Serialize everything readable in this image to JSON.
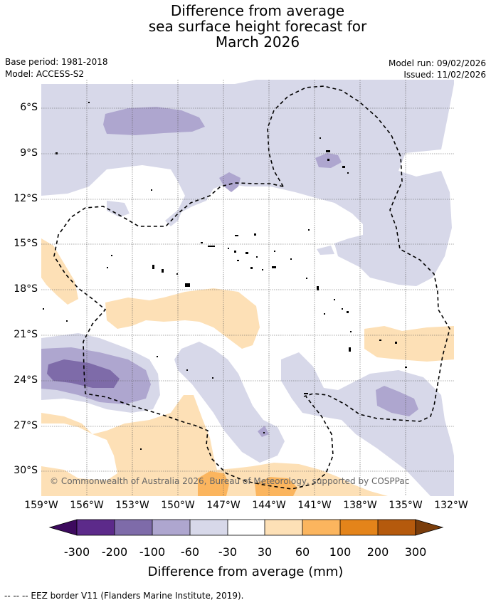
{
  "title": {
    "line1": "Difference from average",
    "line2": "sea surface height forecast for",
    "line3": "March 2026"
  },
  "meta": {
    "base_period": "Base period: 1981-2018",
    "model": "Model: ACCESS-S2",
    "model_run": "Model run: 09/02/2026",
    "issued": "Issued: 11/02/2026"
  },
  "axes": {
    "lat_labels": [
      "6°S",
      "9°S",
      "12°S",
      "15°S",
      "18°S",
      "21°S",
      "24°S",
      "27°S",
      "30°S"
    ],
    "lon_labels": [
      "159°W",
      "156°W",
      "153°W",
      "150°W",
      "147°W",
      "144°W",
      "141°W",
      "138°W",
      "135°W",
      "132°W"
    ]
  },
  "copyright": "© Commonwealth of Australia 2026, Bureau of Meteorology, supported by COSPPac",
  "colorbar": {
    "labels": [
      "-300",
      "-200",
      "-100",
      "-60",
      "-30",
      "30",
      "60",
      "100",
      "200",
      "300"
    ],
    "colors": [
      "#3d0a5e",
      "#5c2a8a",
      "#7e6ba9",
      "#aea6cf",
      "#d7d8e9",
      "#ffffff",
      "#fde0b6",
      "#fbb55e",
      "#e4841a",
      "#b55a0d",
      "#7a3d0b"
    ],
    "title": "Difference from average (mm)"
  },
  "footer": "--  --  -- EEZ border V11 (Flanders Marine Institute, 2019)."
}
